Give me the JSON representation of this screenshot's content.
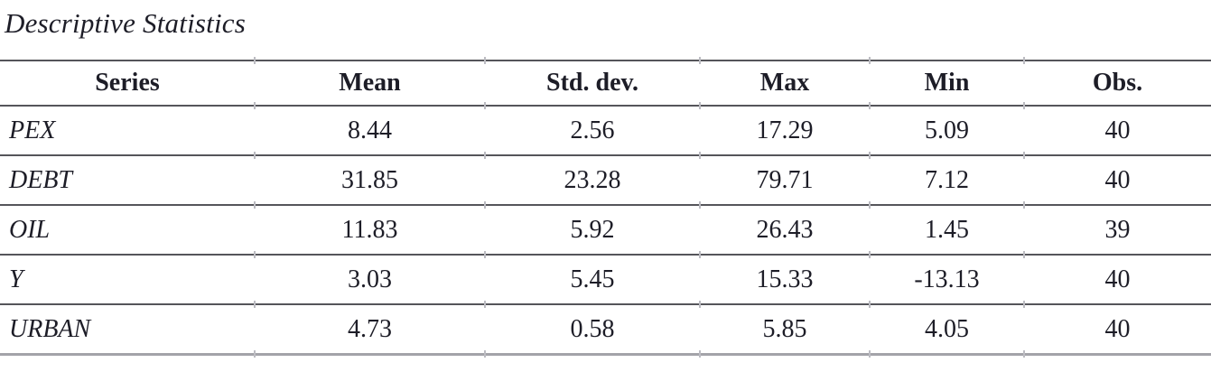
{
  "title": "Descriptive Statistics",
  "table": {
    "columns": [
      "Series",
      "Mean",
      "Std. dev.",
      "Max",
      "Min",
      "Obs."
    ],
    "rows": [
      {
        "label": "PEX",
        "values": [
          "8.44",
          "2.56",
          "17.29",
          "5.09",
          "40"
        ]
      },
      {
        "label": "DEBT",
        "values": [
          "31.85",
          "23.28",
          "79.71",
          "7.12",
          "40"
        ]
      },
      {
        "label": "OIL",
        "values": [
          "11.83",
          "5.92",
          "26.43",
          "1.45",
          "39"
        ]
      },
      {
        "label": "Y",
        "values": [
          "3.03",
          "5.45",
          "15.33",
          "-13.13",
          "40"
        ]
      },
      {
        "label": "URBAN",
        "values": [
          "4.73",
          "0.58",
          "5.85",
          "4.05",
          "40"
        ]
      }
    ]
  },
  "colors": {
    "background": "#ffffff",
    "text": "#1d1d27",
    "rule": "#55555a",
    "bottom_rule": "#a3a3a9",
    "tick": "#bcbcc2"
  }
}
